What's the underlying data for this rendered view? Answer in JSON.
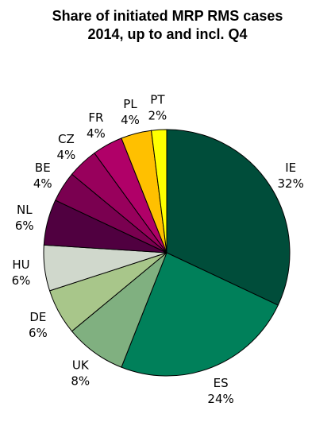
{
  "chart_data": {
    "type": "pie",
    "title": [
      "Share of initiated MRP RMS cases",
      "2014, up to and incl. Q4"
    ],
    "start_angle_deg": 0,
    "direction": "clockwise",
    "slices": [
      {
        "name": "IE",
        "value": 32,
        "label": "32%",
        "color": "#004d3a"
      },
      {
        "name": "ES",
        "value": 24,
        "label": "24%",
        "color": "#00805a"
      },
      {
        "name": "UK",
        "value": 8,
        "label": "8%",
        "color": "#80b080"
      },
      {
        "name": "DE",
        "value": 6,
        "label": "6%",
        "color": "#a8c68a"
      },
      {
        "name": "HU",
        "value": 6,
        "label": "6%",
        "color": "#d0d8cc"
      },
      {
        "name": "NL",
        "value": 6,
        "label": "6%",
        "color": "#500040"
      },
      {
        "name": "BE",
        "value": 4,
        "label": "4%",
        "color": "#7a0050"
      },
      {
        "name": "CZ",
        "value": 4,
        "label": "4%",
        "color": "#98005c"
      },
      {
        "name": "FR",
        "value": 4,
        "label": "4%",
        "color": "#b00068"
      },
      {
        "name": "PL",
        "value": 4,
        "label": "4%",
        "color": "#ffc000"
      },
      {
        "name": "PT",
        "value": 2,
        "label": "2%",
        "color": "#ffff00"
      }
    ]
  }
}
